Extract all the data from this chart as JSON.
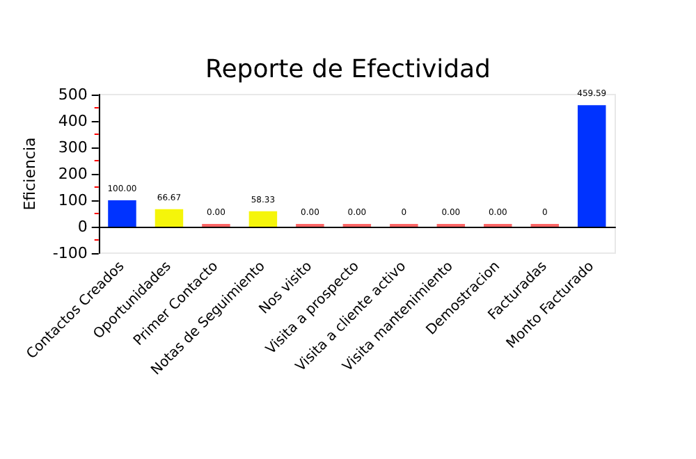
{
  "chart_data": {
    "type": "bar",
    "title": "Reporte de Efectividad",
    "ylabel": "Eficiencia",
    "categories": [
      "Contactos Creados",
      "Oportunidades",
      "Primer Contacto",
      "Notas de Seguimiento",
      "Nos visito",
      "Visita a prospecto",
      "Visita a cliente activo",
      "Visita mantenimiento",
      "Demostracion",
      "Facturadas",
      "Monto Facturado"
    ],
    "values": [
      100,
      66.67,
      0,
      58.33,
      0,
      0,
      0,
      0,
      0,
      0,
      459.59
    ],
    "colors": [
      "#0033ff",
      "#f5f50a",
      "#ff6666",
      "#f5f50a",
      "#ff6666",
      "#ff6666",
      "#ff6666",
      "#ff6666",
      "#ff6666",
      "#ff6666",
      "#0033ff"
    ],
    "value_labels": [
      "100.00",
      "66.67",
      "0.00",
      "58.33",
      "0.00",
      "0.00",
      "0",
      "0.00",
      "0.00",
      "0",
      "459.59"
    ],
    "ylim": [
      -100,
      500
    ],
    "yticks": [
      -100,
      0,
      100,
      200,
      300,
      400,
      500
    ]
  }
}
